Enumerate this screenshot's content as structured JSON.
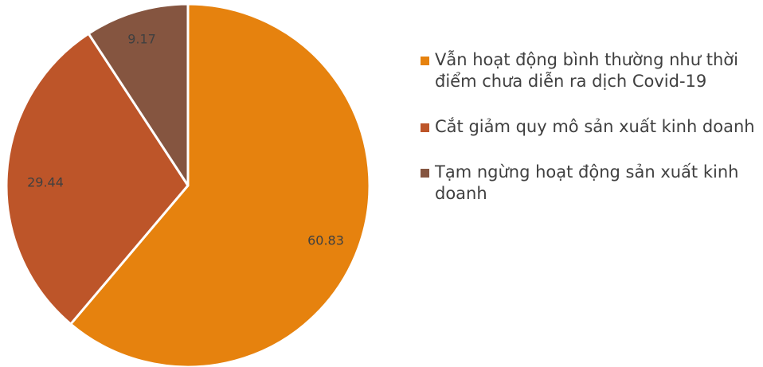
{
  "chart_data": {
    "type": "pie",
    "start_angle_deg": 0,
    "direction": "clockwise",
    "slices": [
      {
        "label": "Vẫn hoạt động bình thường như thời điểm chưa diễn ra dịch Covid-19",
        "value": 60.83,
        "value_label": "60.83",
        "color": "#E6820E"
      },
      {
        "label": "Cắt giảm quy mô sản xuất kinh doanh",
        "value": 29.44,
        "value_label": "29.44",
        "color": "#BD5529"
      },
      {
        "label": "Tạm ngừng hoạt động sản xuất kinh doanh",
        "value": 9.17,
        "value_label": "9.17",
        "color": "#855540"
      }
    ],
    "legend_position": "right",
    "slice_border_color": "#ffffff"
  }
}
